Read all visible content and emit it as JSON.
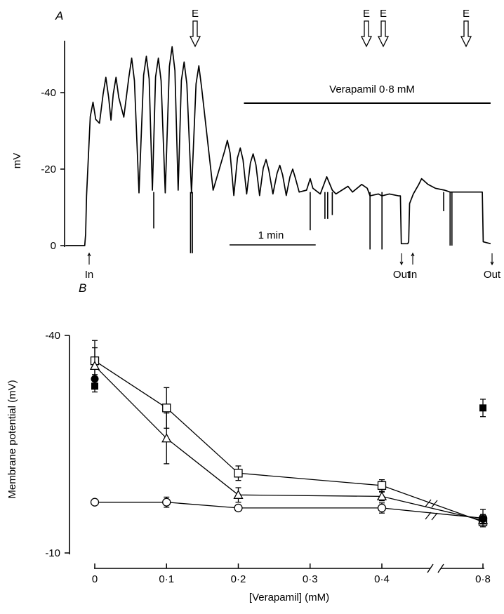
{
  "figure": {
    "panel_a_label": "A",
    "panel_b_label": "B"
  },
  "chart_data": [
    {
      "type": "line",
      "panel": "A",
      "ylabel": "mV",
      "yticks": [
        "-40",
        "-20",
        "0"
      ],
      "ylim": [
        0,
        -55
      ],
      "time_units": "s",
      "xlim_s": [
        0,
        450
      ],
      "scale_bar": {
        "label": "1 min",
        "seconds": 60
      },
      "drug_bar": {
        "label": "Verapamil 0·8 mM",
        "start_s": 172,
        "end_s": 440
      },
      "event_arrows": [
        {
          "label": "E",
          "t_s": 114
        },
        {
          "label": "E",
          "t_s": 309
        },
        {
          "label": "E",
          "t_s": 322
        },
        {
          "label": "E",
          "t_s": 396
        }
      ],
      "electrode_markers": [
        {
          "label": "In",
          "t_s": 0,
          "direction": "up"
        },
        {
          "label": "Out",
          "t_s": 342,
          "direction": "down"
        },
        {
          "label": "In",
          "t_s": 351,
          "direction": "up"
        },
        {
          "label": "Out",
          "t_s": 432,
          "direction": "down"
        }
      ],
      "trace_peaks": [
        {
          "t_s": 8,
          "mv": -37.5
        },
        {
          "t_s": 22,
          "mv": -44.0
        },
        {
          "t_s": 33,
          "mv": -44.0
        },
        {
          "t_s": 50,
          "mv": -49.0
        },
        {
          "t_s": 66,
          "mv": -49.5
        },
        {
          "t_s": 79,
          "mv": -49.0
        },
        {
          "t_s": 94,
          "mv": -52.0
        },
        {
          "t_s": 107,
          "mv": -48.0
        },
        {
          "t_s": 123,
          "mv": -47.0
        },
        {
          "t_s": 154,
          "mv": -27.5
        },
        {
          "t_s": 168,
          "mv": -25.5
        },
        {
          "t_s": 182,
          "mv": -24.0
        },
        {
          "t_s": 196,
          "mv": -22.5
        },
        {
          "t_s": 211,
          "mv": -21.0
        },
        {
          "t_s": 225,
          "mv": -20.0
        }
      ]
    },
    {
      "type": "line",
      "panel": "B",
      "xlabel": "[Verapamil] (mM)",
      "ylabel": "Membrane potential (mV)",
      "xticks": [
        "0",
        "0·1",
        "0·2",
        "0·3",
        "0·4",
        "0·8"
      ],
      "yticks": [
        "-40",
        "-10"
      ],
      "ylim": [
        -10,
        -40
      ],
      "axis_break": "between 0·4 and 0·8",
      "series": [
        {
          "marker": "open-square",
          "x": [
            0,
            0.1,
            0.2,
            0.4,
            0.8
          ],
          "y": [
            -36.5,
            -30.0,
            -21.0,
            -19.3,
            -14.3
          ],
          "err": [
            2.8,
            2.8,
            1.0,
            0.8,
            0.4
          ]
        },
        {
          "marker": "open-triangle",
          "x": [
            0,
            0.1,
            0.2,
            0.4,
            0.8
          ],
          "y": [
            -35.8,
            -25.8,
            -18.0,
            -17.8,
            -14.5
          ],
          "err": [
            2.5,
            3.5,
            1.0,
            0.6,
            0.5
          ]
        },
        {
          "marker": "open-circle",
          "x": [
            0,
            0.1,
            0.2,
            0.4,
            0.8
          ],
          "y": [
            -17.0,
            -17.0,
            -16.2,
            -16.2,
            -14.8
          ],
          "err": [
            0.3,
            0.7,
            0.3,
            0.7,
            1.2
          ]
        },
        {
          "marker": "filled-circle",
          "x": [
            0,
            0.8
          ],
          "y": [
            -34.0,
            -14.7
          ],
          "err": [
            0.6,
            0.6
          ]
        },
        {
          "marker": "filled-square",
          "x": [
            0,
            0.8
          ],
          "y": [
            -33.0,
            -30.0
          ],
          "err": [
            0.8,
            1.2
          ]
        }
      ]
    }
  ]
}
